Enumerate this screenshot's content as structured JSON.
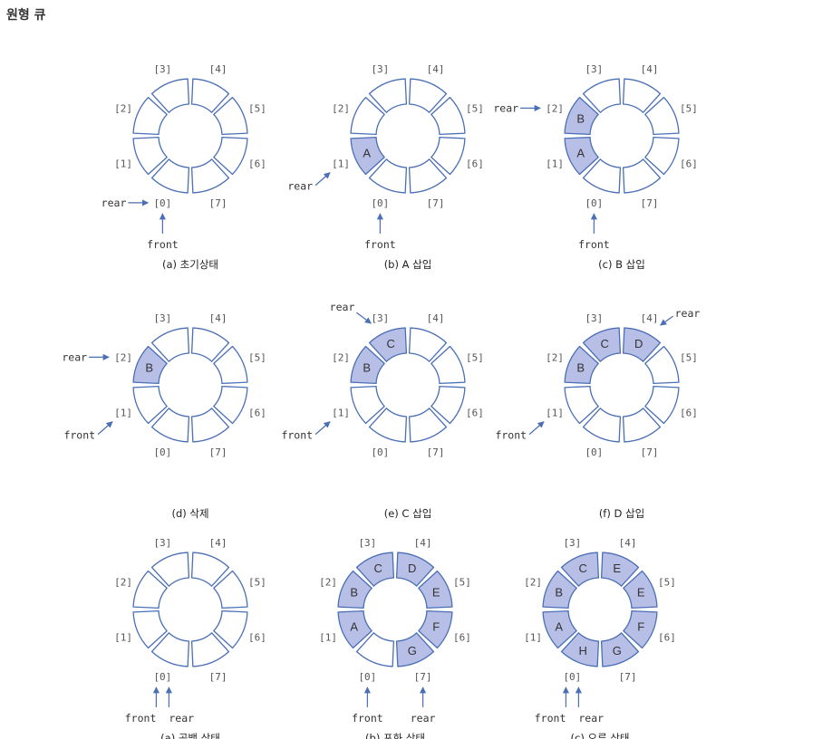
{
  "page_title": "원형 큐",
  "colors": {
    "stroke": "#4a6fb5",
    "filled": "#b8bfe6",
    "empty": "#ffffff",
    "arrow": "#4a6fb5"
  },
  "diagrams": [
    {
      "caption": "(a) 초기상태",
      "values": [
        "",
        "",
        "",
        "",
        "",
        "",
        "",
        ""
      ],
      "pointers": [
        {
          "label": "rear",
          "target": 0,
          "dir": "left"
        },
        {
          "label": "front",
          "target": 0,
          "dir": "below"
        }
      ]
    },
    {
      "caption": "(b) A 삽입",
      "values": [
        "",
        "A",
        "",
        "",
        "",
        "",
        "",
        ""
      ],
      "pointers": [
        {
          "label": "rear",
          "target": 1,
          "dir": "diag-lower-left"
        },
        {
          "label": "front",
          "target": 0,
          "dir": "below"
        }
      ]
    },
    {
      "caption": "(c) B 삽입",
      "values": [
        "",
        "A",
        "B",
        "",
        "",
        "",
        "",
        ""
      ],
      "pointers": [
        {
          "label": "rear",
          "target": 2,
          "dir": "left"
        },
        {
          "label": "front",
          "target": 0,
          "dir": "below"
        }
      ]
    },
    {
      "caption": "(d) 삭제",
      "values": [
        "",
        "",
        "B",
        "",
        "",
        "",
        "",
        ""
      ],
      "pointers": [
        {
          "label": "rear",
          "target": 2,
          "dir": "left"
        },
        {
          "label": "front",
          "target": 1,
          "dir": "diag-lower-left"
        }
      ]
    },
    {
      "caption": "(e) C 삽입",
      "values": [
        "",
        "",
        "B",
        "C",
        "",
        "",
        "",
        ""
      ],
      "pointers": [
        {
          "label": "rear",
          "target": 3,
          "dir": "upper-left"
        },
        {
          "label": "front",
          "target": 1,
          "dir": "diag-lower-left"
        }
      ]
    },
    {
      "caption": "(f) D 삽입",
      "values": [
        "",
        "",
        "B",
        "C",
        "D",
        "",
        "",
        ""
      ],
      "pointers": [
        {
          "label": "rear",
          "target": 4,
          "dir": "upper-right"
        },
        {
          "label": "front",
          "target": 1,
          "dir": "diag-lower-left"
        }
      ]
    },
    {
      "caption": "(a) 공백 상태",
      "values": [
        "",
        "",
        "",
        "",
        "",
        "",
        "",
        ""
      ],
      "pointers": [
        {
          "label": "front",
          "target": 0,
          "dir": "below-left"
        },
        {
          "label": "rear",
          "target": 0,
          "dir": "below-right"
        }
      ]
    },
    {
      "caption": "(b) 포화 상태",
      "values": [
        "",
        "A",
        "B",
        "C",
        "D",
        "E",
        "F",
        "G"
      ],
      "pointers": [
        {
          "label": "front",
          "target": 0,
          "dir": "below"
        },
        {
          "label": "rear",
          "target": 7,
          "dir": "below"
        }
      ]
    },
    {
      "caption": "(c) 오류 상태",
      "values": [
        "H",
        "A",
        "B",
        "C",
        "E",
        "E",
        "F",
        "G"
      ],
      "pointers": [
        {
          "label": "front",
          "target": 0,
          "dir": "below-left"
        },
        {
          "label": "rear",
          "target": 0,
          "dir": "below-right"
        }
      ]
    }
  ],
  "slot_labels": [
    "[0]",
    "[1]",
    "[2]",
    "[3]",
    "[4]",
    "[5]",
    "[6]",
    "[7]"
  ]
}
